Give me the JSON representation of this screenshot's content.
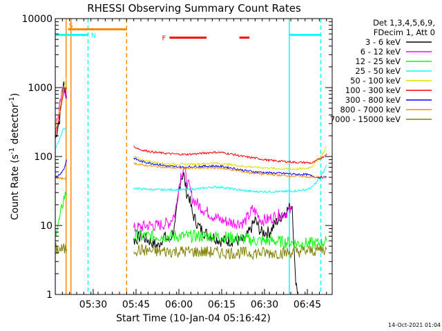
{
  "chart_data": {
    "type": "line",
    "title": "RHESSI Observing Summary Count Rates",
    "xlabel": "Start Time (10-Jan-04 05:16:42)",
    "ylabel": "Count Rate (s",
    "ylabel_sup1": "-1",
    "ylabel_mid": " detector",
    "ylabel_sup2": "-1",
    "ylabel_end": ")",
    "y_scale": "log",
    "ylim": [
      1,
      10000
    ],
    "xlim_minutes": [
      0,
      97
    ],
    "x_ticks": [
      {
        "label": "05:30",
        "min": 13.3
      },
      {
        "label": "05:45",
        "min": 28.3
      },
      {
        "label": "06:00",
        "min": 43.3
      },
      {
        "label": "06:15",
        "min": 58.3
      },
      {
        "label": "06:30",
        "min": 73.3
      },
      {
        "label": "06:45",
        "min": 88.3
      }
    ],
    "y_ticks": [
      {
        "label": "1",
        "value": 1
      },
      {
        "label": "10",
        "value": 10
      },
      {
        "label": "100",
        "value": 100
      },
      {
        "label": "1000",
        "value": 1000
      },
      {
        "label": "10000",
        "value": 10000
      }
    ],
    "legend_header": [
      "Det 1,3,4,5,6,9,",
      "FDecim 1, Att 0"
    ],
    "legend_position": "right",
    "series": [
      {
        "name": "3 - 6 keV",
        "color": "#000000",
        "segments": [
          [
            [
              0,
              180
            ],
            [
              1.5,
              350
            ],
            [
              3,
              1150
            ],
            [
              4,
              700
            ]
          ],
          [
            [
              27.5,
              6
            ],
            [
              30,
              7
            ],
            [
              33,
              6
            ],
            [
              36,
              5
            ],
            [
              38,
              7
            ],
            [
              40,
              6
            ],
            [
              42,
              10
            ],
            [
              43,
              25
            ],
            [
              44,
              50
            ],
            [
              45,
              55
            ],
            [
              46,
              30
            ],
            [
              47,
              25
            ],
            [
              48,
              15
            ],
            [
              50,
              10
            ],
            [
              52,
              8
            ],
            [
              55,
              7
            ],
            [
              58,
              6
            ],
            [
              62,
              6
            ],
            [
              66,
              6
            ],
            [
              68,
              8
            ],
            [
              70,
              12
            ],
            [
              72,
              8
            ],
            [
              75,
              8
            ],
            [
              78,
              12
            ],
            [
              80,
              15
            ],
            [
              82,
              18
            ],
            [
              83,
              20
            ],
            [
              84,
              2
            ],
            [
              85,
              1
            ]
          ]
        ]
      },
      {
        "name": "6 - 12 keV",
        "color": "#ff00ff",
        "segments": [
          [
            [
              0,
              260
            ],
            [
              1.5,
              500
            ],
            [
              3,
              1100
            ],
            [
              4,
              700
            ]
          ],
          [
            [
              27.5,
              9
            ],
            [
              32,
              10
            ],
            [
              36,
              10
            ],
            [
              40,
              11
            ],
            [
              42,
              15
            ],
            [
              43,
              30
            ],
            [
              44,
              55
            ],
            [
              45,
              70
            ],
            [
              46,
              45
            ],
            [
              47,
              35
            ],
            [
              48,
              25
            ],
            [
              50,
              20
            ],
            [
              52,
              17
            ],
            [
              55,
              14
            ],
            [
              58,
              12
            ],
            [
              62,
              11
            ],
            [
              66,
              11
            ],
            [
              68,
              14
            ],
            [
              69,
              17
            ],
            [
              70,
              16
            ],
            [
              72,
              12
            ],
            [
              74,
              12
            ],
            [
              76,
              13
            ],
            [
              78,
              14
            ],
            [
              80,
              15
            ],
            [
              82,
              16
            ],
            [
              83,
              17
            ]
          ]
        ]
      },
      {
        "name": "12 - 25 keV",
        "color": "#00ff00",
        "segments": [
          [
            [
              0,
              8
            ],
            [
              1.5,
              12
            ],
            [
              3,
              25
            ],
            [
              4,
              30
            ]
          ],
          [
            [
              27.5,
              7
            ],
            [
              35,
              7
            ],
            [
              45,
              7
            ],
            [
              55,
              7
            ],
            [
              60,
              6.8
            ],
            [
              65,
              6.5
            ],
            [
              70,
              6
            ],
            [
              75,
              6
            ],
            [
              80,
              5.8
            ],
            [
              85,
              5.5
            ],
            [
              90,
              5.5
            ],
            [
              93,
              5.5
            ],
            [
              95,
              6
            ]
          ]
        ]
      },
      {
        "name": "25 - 50 keV",
        "color": "#00ffff",
        "segments": [
          [
            [
              0,
              130
            ],
            [
              1.5,
              180
            ],
            [
              3,
              260
            ],
            [
              4,
              230
            ]
          ],
          [
            [
              27.5,
              35
            ],
            [
              30,
              34
            ],
            [
              35,
              33
            ],
            [
              40,
              33
            ],
            [
              45,
              33
            ],
            [
              50,
              34
            ],
            [
              55,
              36
            ],
            [
              58,
              36
            ],
            [
              62,
              34
            ],
            [
              66,
              32
            ],
            [
              70,
              31
            ],
            [
              75,
              31
            ],
            [
              80,
              31
            ],
            [
              85,
              32
            ],
            [
              88,
              33
            ],
            [
              90,
              36
            ],
            [
              92,
              45
            ],
            [
              94,
              60
            ],
            [
              95,
              75
            ]
          ]
        ]
      },
      {
        "name": "50 - 100 keV",
        "color": "#dddd00",
        "segments": [
          [
            [
              0,
              250
            ],
            [
              1.5,
              500
            ],
            [
              3,
              1000
            ],
            [
              4,
              1400
            ]
          ],
          [
            [
              27.5,
              100
            ],
            [
              30,
              90
            ],
            [
              35,
              82
            ],
            [
              40,
              78
            ],
            [
              45,
              77
            ],
            [
              50,
              78
            ],
            [
              55,
              80
            ],
            [
              58,
              79
            ],
            [
              62,
              76
            ],
            [
              66,
              72
            ],
            [
              70,
              70
            ],
            [
              75,
              68
            ],
            [
              80,
              66
            ],
            [
              85,
              66
            ],
            [
              88,
              67
            ],
            [
              90,
              72
            ],
            [
              92,
              90
            ],
            [
              94,
              115
            ],
            [
              95,
              140
            ]
          ]
        ]
      },
      {
        "name": "100 - 300 keV",
        "color": "#ff0000",
        "segments": [
          [
            [
              0,
              200
            ],
            [
              1.5,
              400
            ],
            [
              3,
              900
            ],
            [
              4,
              1000
            ]
          ],
          [
            [
              27.5,
              140
            ],
            [
              30,
              125
            ],
            [
              35,
              115
            ],
            [
              40,
              110
            ],
            [
              45,
              107
            ],
            [
              50,
              110
            ],
            [
              55,
              115
            ],
            [
              58,
              115
            ],
            [
              62,
              108
            ],
            [
              66,
              100
            ],
            [
              70,
              95
            ],
            [
              75,
              88
            ],
            [
              80,
              85
            ],
            [
              85,
              82
            ],
            [
              88,
              82
            ],
            [
              90,
              80
            ],
            [
              92,
              90
            ],
            [
              94,
              100
            ],
            [
              95,
              110
            ]
          ]
        ]
      },
      {
        "name": "300 - 800 keV",
        "color": "#0000ff",
        "segments": [
          [
            [
              0,
              50
            ],
            [
              1.5,
              55
            ],
            [
              3,
              65
            ],
            [
              4,
              90
            ]
          ],
          [
            [
              27.5,
              95
            ],
            [
              30,
              85
            ],
            [
              35,
              78
            ],
            [
              40,
              72
            ],
            [
              45,
              70
            ],
            [
              50,
              72
            ],
            [
              55,
              73
            ],
            [
              58,
              72
            ],
            [
              62,
              68
            ],
            [
              66,
              63
            ],
            [
              70,
              60
            ],
            [
              75,
              58
            ],
            [
              80,
              57
            ],
            [
              85,
              55
            ],
            [
              88,
              55
            ],
            [
              90,
              52
            ],
            [
              92,
              50
            ],
            [
              94,
              50
            ],
            [
              95,
              50
            ]
          ]
        ]
      },
      {
        "name": "800 - 7000 keV",
        "color": "#ff8800",
        "segments": [
          [
            [
              0,
              50
            ],
            [
              1.5,
              48
            ],
            [
              3,
              48
            ],
            [
              4,
              50
            ]
          ],
          [
            [
              27.5,
              80
            ],
            [
              30,
              76
            ],
            [
              35,
              72
            ],
            [
              40,
              69
            ],
            [
              45,
              68
            ],
            [
              50,
              68
            ],
            [
              55,
              69
            ],
            [
              58,
              68
            ],
            [
              62,
              64
            ],
            [
              66,
              60
            ],
            [
              70,
              57
            ],
            [
              75,
              55
            ],
            [
              80,
              53
            ],
            [
              85,
              52
            ],
            [
              88,
              51
            ],
            [
              90,
              50
            ],
            [
              92,
              50
            ],
            [
              94,
              50
            ],
            [
              95,
              50
            ]
          ]
        ]
      },
      {
        "name": "7000 - 15000 keV",
        "color": "#808000",
        "segments": [
          [
            [
              0,
              4.5
            ],
            [
              1.5,
              4.5
            ],
            [
              3,
              4.5
            ],
            [
              4,
              4.5
            ]
          ],
          [
            [
              27.5,
              4.5
            ],
            [
              35,
              4.2
            ],
            [
              45,
              4.2
            ],
            [
              55,
              4.1
            ],
            [
              60,
              4
            ],
            [
              65,
              4
            ],
            [
              70,
              4
            ],
            [
              75,
              4
            ],
            [
              80,
              4
            ],
            [
              85,
              4.2
            ],
            [
              90,
              4.3
            ],
            [
              93,
              4.5
            ],
            [
              95,
              4.5
            ]
          ]
        ]
      }
    ],
    "annotations": {
      "saa_label": "S",
      "saa_color": "#ff8800",
      "saa_bar": {
        "x": [
          4.5,
          25
        ],
        "y": 7000
      },
      "night_label": "N",
      "night_color": "#00ffff",
      "night_bars": [
        {
          "x": [
            0,
            11.5
          ],
          "y": 5800
        },
        {
          "x": [
            82,
            93
          ],
          "y": 5800
        }
      ],
      "flare_label": "F",
      "flare_color": "#ff0000",
      "flare_bars": [
        {
          "x": [
            40,
            53
          ],
          "y": 5300
        },
        {
          "x": [
            64.5,
            68
          ],
          "y": 5300
        }
      ],
      "vertical_lines": [
        {
          "min": 0,
          "color": "#00ffff",
          "style": "solid"
        },
        {
          "min": 3.8,
          "color": "#ff8800",
          "style": "solid"
        },
        {
          "min": 5.5,
          "color": "#ff8800",
          "style": "solid"
        },
        {
          "min": 11.5,
          "color": "#00ffff",
          "style": "dashed"
        },
        {
          "min": 25,
          "color": "#ff8800",
          "style": "dashed"
        },
        {
          "min": 82,
          "color": "#00ffff",
          "style": "solid"
        },
        {
          "min": 93,
          "color": "#00ffff",
          "style": "dashed"
        }
      ]
    },
    "grid": false
  },
  "footer": {
    "timestamp": "14-Oct-2021 01:04"
  }
}
